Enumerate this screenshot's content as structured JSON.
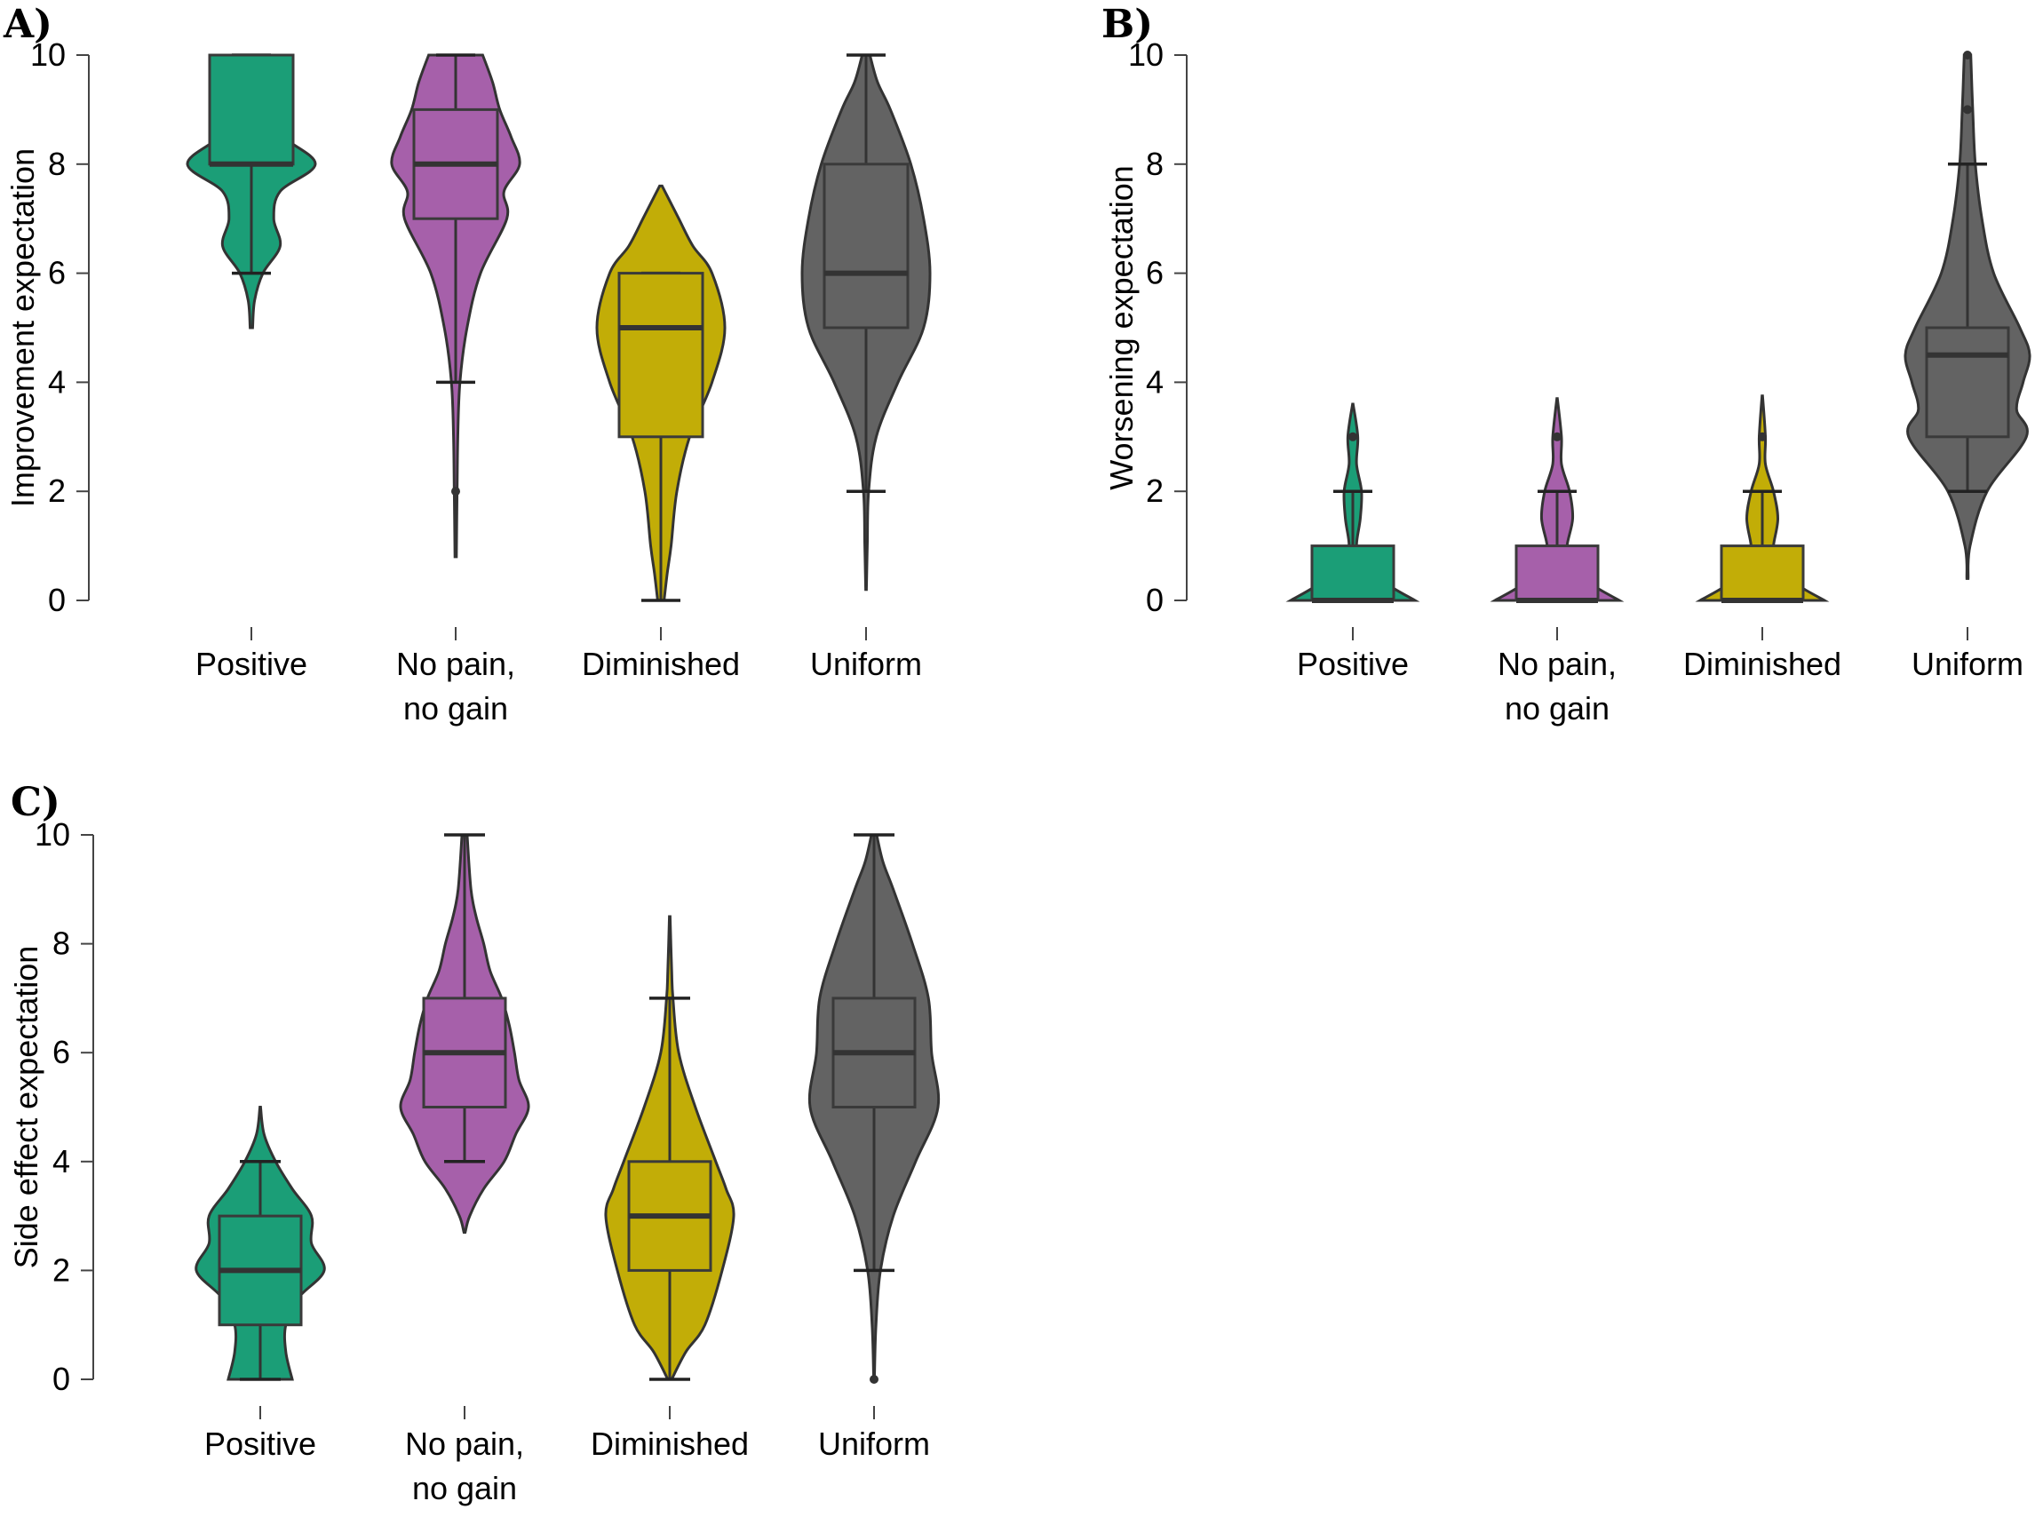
{
  "colors": {
    "Positive": "#1b9e77",
    "No pain, no gain": "#a660aa",
    "Diminished": "#c2ad07",
    "Uniform": "#636363"
  },
  "chart_data": [
    {
      "panel": "A)",
      "type": "violin",
      "ylabel": "Improvement expectation",
      "ylim": [
        0,
        10
      ],
      "yticks": [
        0,
        2,
        4,
        6,
        8,
        10
      ],
      "groups": [
        {
          "name": "Positive",
          "label_lines": [
            "Positive"
          ],
          "q1": 8,
          "median": 8,
          "q3": 10,
          "whisker_low": 6,
          "whisker_high": 10,
          "outliers": [],
          "violin_min": 5,
          "violin_max": 10,
          "density": [
            [
              5,
              0.02
            ],
            [
              5.5,
              0.05
            ],
            [
              6,
              0.18
            ],
            [
              6.5,
              0.45
            ],
            [
              7,
              0.35
            ],
            [
              7.5,
              0.45
            ],
            [
              8,
              1.0
            ],
            [
              8.5,
              0.5
            ],
            [
              9,
              0.18
            ],
            [
              9.5,
              0.3
            ],
            [
              10,
              0.38
            ]
          ]
        },
        {
          "name": "No pain, no gain",
          "label_lines": [
            "No pain,",
            "no gain"
          ],
          "q1": 7,
          "median": 8,
          "q3": 9,
          "whisker_low": 4,
          "whisker_high": 10,
          "outliers": [
            2
          ],
          "violin_min": 0.8,
          "violin_max": 10,
          "density": [
            [
              0.8,
              0.01
            ],
            [
              2,
              0.02
            ],
            [
              3,
              0.03
            ],
            [
              4,
              0.06
            ],
            [
              5,
              0.16
            ],
            [
              6,
              0.35
            ],
            [
              7,
              0.72
            ],
            [
              7.5,
              0.68
            ],
            [
              8,
              0.9
            ],
            [
              8.5,
              0.78
            ],
            [
              9,
              0.62
            ],
            [
              9.5,
              0.52
            ],
            [
              10,
              0.38
            ]
          ]
        },
        {
          "name": "Diminished",
          "label_lines": [
            "Diminished"
          ],
          "q1": 3,
          "median": 5,
          "q3": 6,
          "whisker_low": 0,
          "whisker_high": 6,
          "outliers": [],
          "violin_min": 0,
          "violin_max": 7.6,
          "density": [
            [
              0,
              0.05
            ],
            [
              0.5,
              0.1
            ],
            [
              1,
              0.16
            ],
            [
              2,
              0.25
            ],
            [
              3,
              0.45
            ],
            [
              4,
              0.8
            ],
            [
              5,
              1.0
            ],
            [
              6,
              0.8
            ],
            [
              6.5,
              0.5
            ],
            [
              7,
              0.28
            ],
            [
              7.6,
              0.02
            ]
          ]
        },
        {
          "name": "Uniform",
          "label_lines": [
            "Uniform"
          ],
          "q1": 5,
          "median": 6,
          "q3": 8,
          "whisker_low": 2,
          "whisker_high": 10,
          "outliers": [],
          "violin_min": 0.2,
          "violin_max": 10,
          "density": [
            [
              0.2,
              0.005
            ],
            [
              1,
              0.02
            ],
            [
              2,
              0.04
            ],
            [
              3,
              0.16
            ],
            [
              4,
              0.5
            ],
            [
              5,
              0.9
            ],
            [
              6,
              1.0
            ],
            [
              7,
              0.9
            ],
            [
              8,
              0.7
            ],
            [
              9,
              0.38
            ],
            [
              9.5,
              0.18
            ],
            [
              10,
              0.06
            ]
          ]
        }
      ]
    },
    {
      "panel": "B)",
      "type": "violin",
      "ylabel": "Worsening expectation",
      "ylim": [
        0,
        10
      ],
      "yticks": [
        0,
        2,
        4,
        6,
        8,
        10
      ],
      "groups": [
        {
          "name": "Positive",
          "label_lines": [
            "Positive"
          ],
          "q1": 0,
          "median": 0,
          "q3": 1,
          "whisker_low": 0,
          "whisker_high": 2,
          "outliers": [
            3
          ],
          "violin_min": 0,
          "violin_max": 3.6,
          "density": [
            [
              0,
              1.0
            ],
            [
              0.3,
              0.55
            ],
            [
              0.7,
              0.15
            ],
            [
              1,
              0.06
            ],
            [
              1.5,
              0.12
            ],
            [
              2,
              0.14
            ],
            [
              2.5,
              0.06
            ],
            [
              3,
              0.08
            ],
            [
              3.6,
              0.005
            ]
          ]
        },
        {
          "name": "No pain, no gain",
          "label_lines": [
            "No pain,",
            "no gain"
          ],
          "q1": 0,
          "median": 0,
          "q3": 1,
          "whisker_low": 0,
          "whisker_high": 2,
          "outliers": [
            3
          ],
          "violin_min": 0,
          "violin_max": 3.7,
          "density": [
            [
              0,
              1.0
            ],
            [
              0.3,
              0.55
            ],
            [
              0.7,
              0.2
            ],
            [
              1,
              0.16
            ],
            [
              1.5,
              0.25
            ],
            [
              2,
              0.2
            ],
            [
              2.5,
              0.07
            ],
            [
              3,
              0.07
            ],
            [
              3.7,
              0.005
            ]
          ]
        },
        {
          "name": "Diminished",
          "label_lines": [
            "Diminished"
          ],
          "q1": 0,
          "median": 0,
          "q3": 1,
          "whisker_low": 0,
          "whisker_high": 2,
          "outliers": [
            3
          ],
          "violin_min": 0,
          "violin_max": 3.75,
          "density": [
            [
              0,
              1.0
            ],
            [
              0.3,
              0.55
            ],
            [
              0.7,
              0.2
            ],
            [
              1,
              0.18
            ],
            [
              1.5,
              0.25
            ],
            [
              2,
              0.18
            ],
            [
              2.5,
              0.05
            ],
            [
              3,
              0.05
            ],
            [
              3.75,
              0.005
            ]
          ]
        },
        {
          "name": "Uniform",
          "label_lines": [
            "Uniform"
          ],
          "q1": 3,
          "median": 4.5,
          "q3": 5,
          "whisker_low": 2,
          "whisker_high": 8,
          "outliers": [
            9,
            10
          ],
          "violin_min": 0.4,
          "violin_max": 10,
          "density": [
            [
              0.4,
              0.01
            ],
            [
              1,
              0.04
            ],
            [
              2,
              0.3
            ],
            [
              3,
              0.9
            ],
            [
              3.5,
              0.75
            ],
            [
              4,
              0.85
            ],
            [
              4.5,
              0.95
            ],
            [
              5,
              0.8
            ],
            [
              6,
              0.4
            ],
            [
              7,
              0.22
            ],
            [
              8,
              0.12
            ],
            [
              9,
              0.08
            ],
            [
              10,
              0.05
            ]
          ]
        }
      ]
    },
    {
      "panel": "C)",
      "type": "violin",
      "ylabel": "Side effect expectation",
      "ylim": [
        0,
        10
      ],
      "yticks": [
        0,
        2,
        4,
        6,
        8,
        10
      ],
      "groups": [
        {
          "name": "Positive",
          "label_lines": [
            "Positive"
          ],
          "q1": 1,
          "median": 2,
          "q3": 3,
          "whisker_low": 0,
          "whisker_high": 4,
          "outliers": [],
          "violin_min": 0,
          "violin_max": 5,
          "density": [
            [
              0,
              0.5
            ],
            [
              0.5,
              0.4
            ],
            [
              1,
              0.4
            ],
            [
              1.5,
              0.6
            ],
            [
              2,
              1.0
            ],
            [
              2.5,
              0.8
            ],
            [
              3,
              0.8
            ],
            [
              3.5,
              0.5
            ],
            [
              4,
              0.24
            ],
            [
              4.5,
              0.06
            ],
            [
              5,
              0.005
            ]
          ]
        },
        {
          "name": "No pain, no gain",
          "label_lines": [
            "No pain,",
            "no gain"
          ],
          "q1": 5,
          "median": 6,
          "q3": 7,
          "whisker_low": 4,
          "whisker_high": 10,
          "outliers": [],
          "violin_min": 2.7,
          "violin_max": 10,
          "density": [
            [
              2.7,
              0.01
            ],
            [
              3,
              0.08
            ],
            [
              3.5,
              0.3
            ],
            [
              4,
              0.62
            ],
            [
              4.5,
              0.8
            ],
            [
              5,
              1.0
            ],
            [
              5.5,
              0.85
            ],
            [
              6,
              0.78
            ],
            [
              6.5,
              0.7
            ],
            [
              7,
              0.58
            ],
            [
              7.5,
              0.4
            ],
            [
              8,
              0.3
            ],
            [
              8.5,
              0.18
            ],
            [
              9,
              0.1
            ],
            [
              10,
              0.04
            ]
          ]
        },
        {
          "name": "Diminished",
          "label_lines": [
            "Diminished"
          ],
          "q1": 2,
          "median": 3,
          "q3": 4,
          "whisker_low": 0,
          "whisker_high": 7,
          "outliers": [],
          "violin_min": 0,
          "violin_max": 8.5,
          "density": [
            [
              0,
              0.03
            ],
            [
              0.5,
              0.25
            ],
            [
              1,
              0.55
            ],
            [
              2,
              0.82
            ],
            [
              3,
              1.0
            ],
            [
              3.5,
              0.88
            ],
            [
              4,
              0.72
            ],
            [
              5,
              0.4
            ],
            [
              6,
              0.14
            ],
            [
              7,
              0.05
            ],
            [
              7.5,
              0.03
            ],
            [
              8.5,
              0.005
            ]
          ]
        },
        {
          "name": "Uniform",
          "label_lines": [
            "Uniform"
          ],
          "q1": 5,
          "median": 6,
          "q3": 7,
          "whisker_low": 2,
          "whisker_high": 10,
          "outliers": [
            0
          ],
          "violin_min": 0,
          "violin_max": 10,
          "density": [
            [
              0,
              0.005
            ],
            [
              1,
              0.03
            ],
            [
              2,
              0.1
            ],
            [
              3,
              0.3
            ],
            [
              4,
              0.65
            ],
            [
              5,
              1.0
            ],
            [
              6,
              0.9
            ],
            [
              7,
              0.85
            ],
            [
              8,
              0.6
            ],
            [
              9,
              0.3
            ],
            [
              9.5,
              0.14
            ],
            [
              10,
              0.04
            ]
          ]
        }
      ]
    }
  ]
}
